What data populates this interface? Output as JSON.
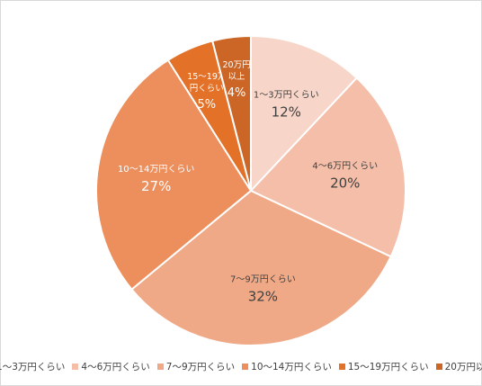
{
  "chart_data": {
    "type": "pie",
    "title": "",
    "start_angle_deg": 0,
    "direction": "clockwise",
    "legend_position": "bottom",
    "slices": [
      {
        "label": "1〜3万円くらい",
        "label_lines": [
          "1〜3万円くらい"
        ],
        "value": 12,
        "value_label": "12%",
        "color": "#f7d5c8"
      },
      {
        "label": "4〜6万円くらい",
        "label_lines": [
          "4〜6万円くらい"
        ],
        "value": 20,
        "value_label": "20%",
        "color": "#f4bea8"
      },
      {
        "label": "7〜9万円くらい",
        "label_lines": [
          "7〜9万円くらい"
        ],
        "value": 32,
        "value_label": "32%",
        "color": "#f0a986"
      },
      {
        "label": "10〜14万円くらい",
        "label_lines": [
          "10〜14万円くらい"
        ],
        "value": 27,
        "value_label": "27%",
        "color": "#ec8f5c"
      },
      {
        "label": "15〜19万円くらい",
        "label_lines": [
          "15〜19万",
          "円くらい"
        ],
        "value": 5,
        "value_label": "5%",
        "color": "#e37128"
      },
      {
        "label": "20万円以上",
        "label_lines": [
          "20万円",
          "以上"
        ],
        "value": 4,
        "value_label": "4%",
        "color": "#cc6626"
      }
    ]
  }
}
